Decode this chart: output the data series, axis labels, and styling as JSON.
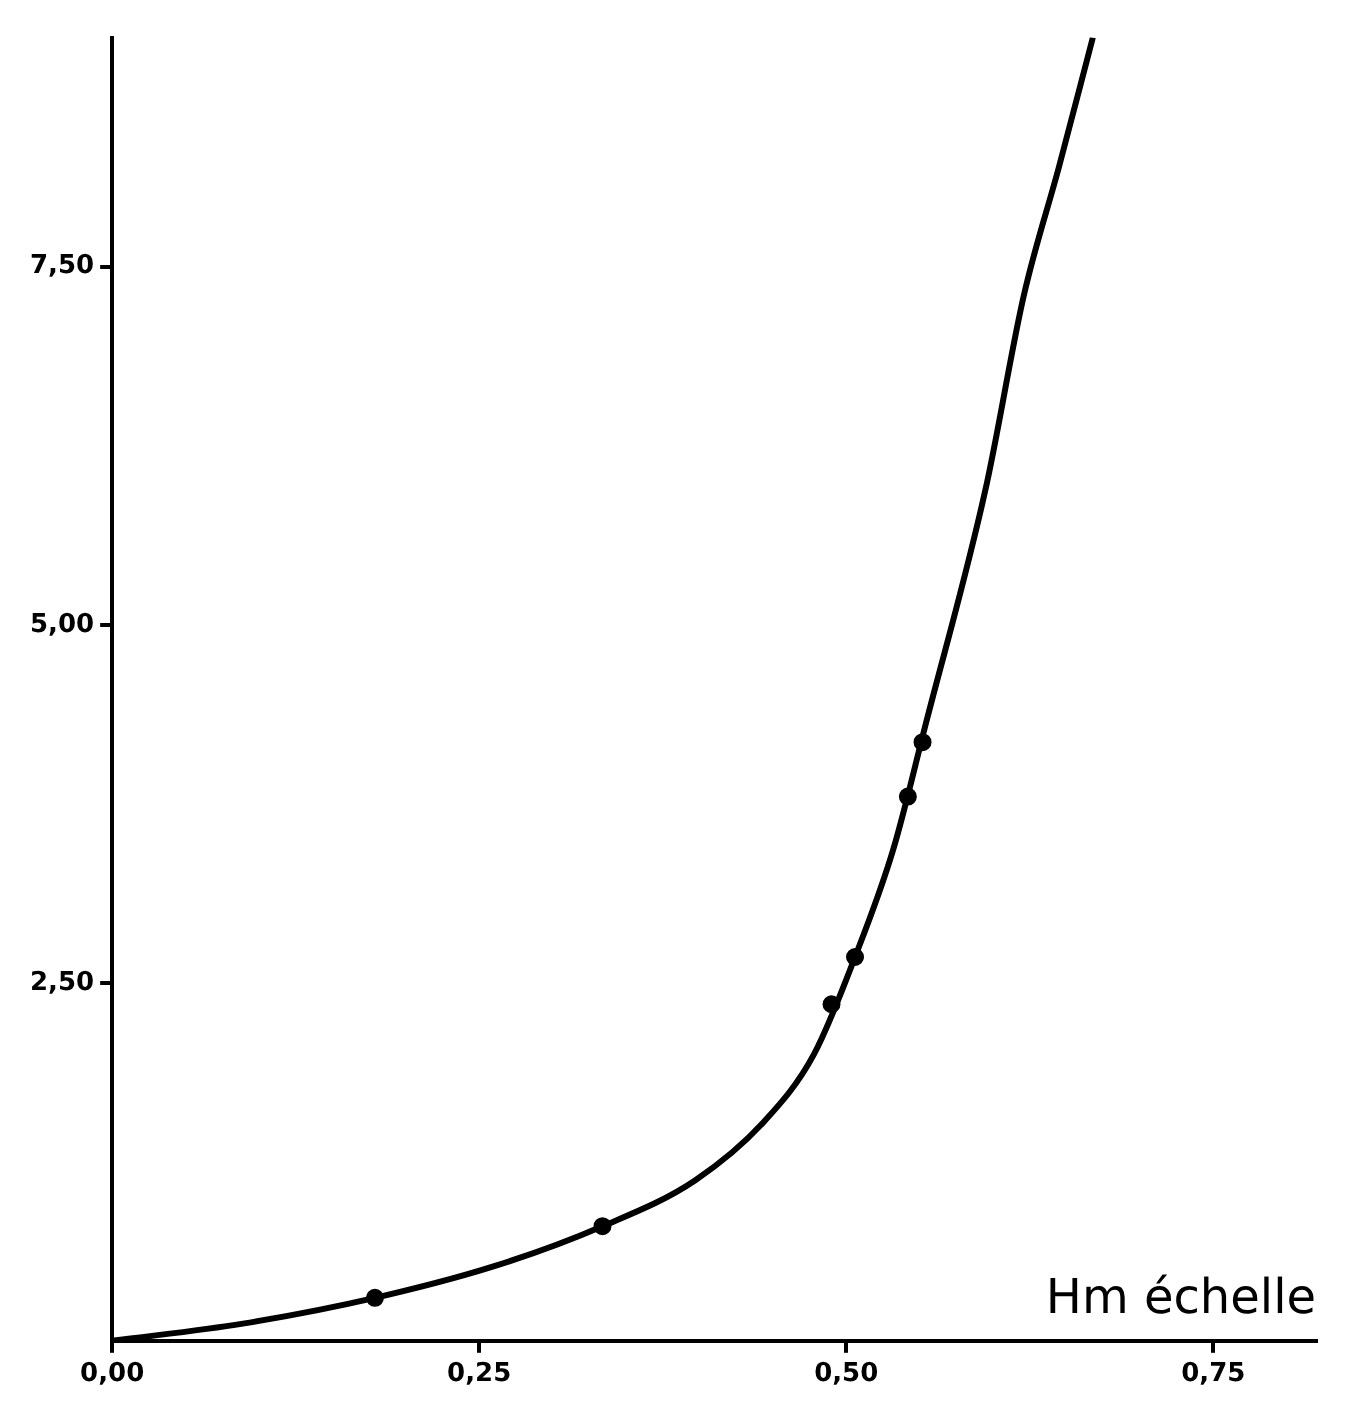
{
  "chart_data": {
    "type": "scatter",
    "xlabel": "Hm échelle",
    "xlim": [
      0,
      0.82
    ],
    "ylim": [
      0,
      9.1
    ],
    "xticks": [
      {
        "value": 0,
        "label": "0,00"
      },
      {
        "value": 0.25,
        "label": "0,25"
      },
      {
        "value": 0.5,
        "label": "0,50"
      },
      {
        "value": 0.75,
        "label": "0,75"
      }
    ],
    "yticks": [
      {
        "value": 2.5,
        "label": "2,50"
      },
      {
        "value": 5,
        "label": "5,00"
      },
      {
        "value": 7.5,
        "label": "7,50"
      }
    ],
    "grid": false,
    "legend": false,
    "series": [
      {
        "color": "#000000",
        "marker": "circle",
        "x": [
          0.179,
          0.334,
          0.49,
          0.506,
          0.542,
          0.552
        ],
        "values": [
          0.3,
          0.8,
          2.35,
          2.68,
          3.8,
          4.18
        ]
      },
      {
        "type": "line",
        "color": "#000000",
        "marker": "none",
        "line_style": "solid",
        "x": [
          0,
          0.089,
          0.179,
          0.263,
          0.334,
          0.397,
          0.444,
          0.478,
          0.506,
          0.532,
          0.554,
          0.595,
          0.621,
          0.645,
          0.668
        ],
        "values": [
          0,
          0.12,
          0.3,
          0.53,
          0.8,
          1.12,
          1.53,
          2.0,
          2.68,
          3.43,
          4.3,
          5.95,
          7.3,
          8.2,
          9.1
        ]
      }
    ]
  }
}
